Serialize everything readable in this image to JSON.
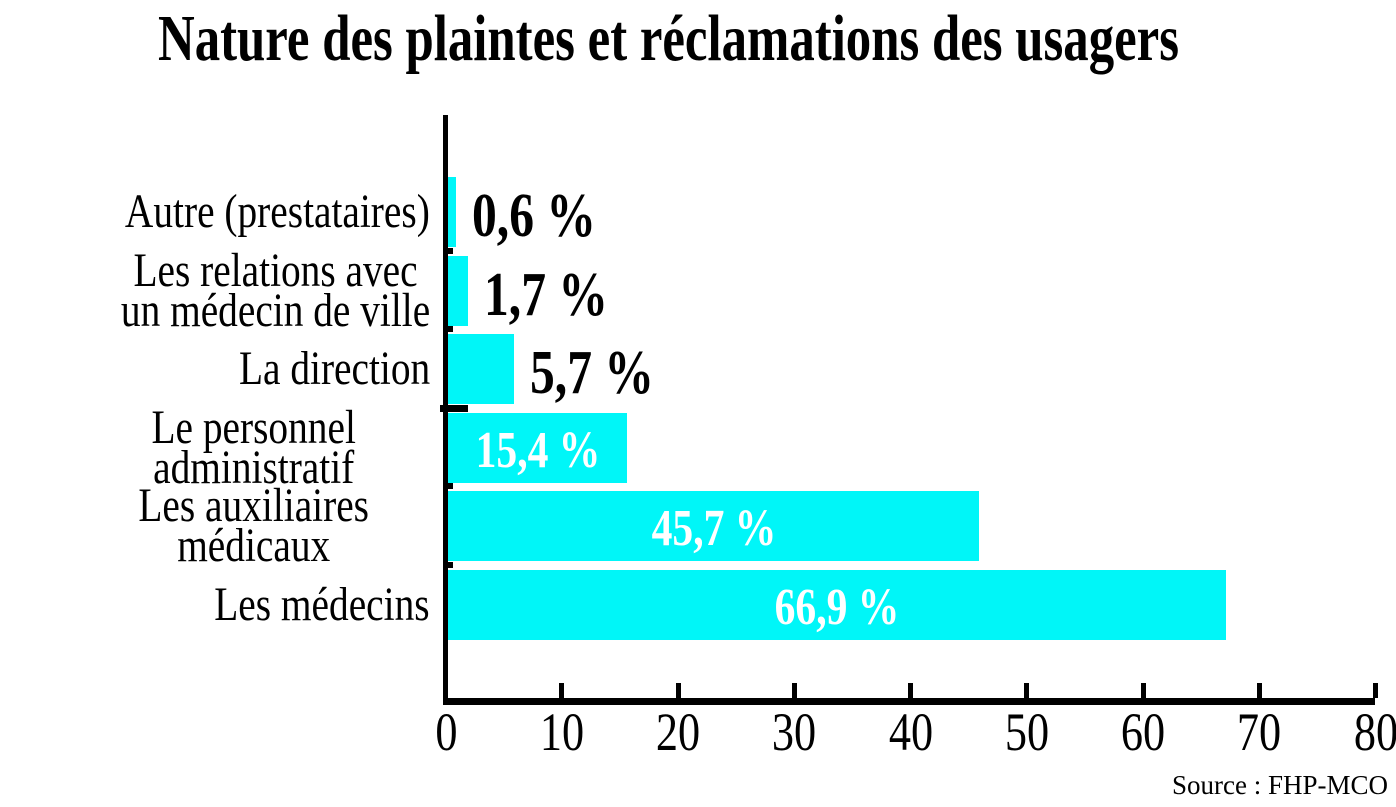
{
  "title": "Nature des plaintes et réclamations des usagers",
  "source": "Source : FHP-MCO",
  "chart_data": {
    "type": "bar",
    "orientation": "horizontal",
    "title": "Nature des plaintes et réclamations des usagers",
    "categories": [
      "Autre (prestataires)",
      "Les relations avec\nun médecin de ville",
      "La direction",
      "Le personnel administratif",
      "Les auxiliaires médicaux",
      "Les médecins"
    ],
    "values": [
      0.6,
      1.7,
      5.7,
      15.4,
      45.7,
      66.9
    ],
    "value_labels": [
      "0,6 %",
      "1,7 %",
      "5,7 %",
      "15,4 %",
      "45,7 %",
      "66,9 %"
    ],
    "label_placement": [
      "outside",
      "outside",
      "outside",
      "inside",
      "inside",
      "inside"
    ],
    "x_ticks": [
      "0",
      "10",
      "20",
      "30",
      "40",
      "50",
      "60",
      "70",
      "80"
    ],
    "xlim": [
      0,
      80
    ],
    "grid": "off",
    "legend": "none",
    "bar_color": "#00f6f8",
    "axis_color": "#000000",
    "outside_label_color": "#000000",
    "inside_label_color": "#ffffff",
    "source": "Source : FHP-MCO"
  }
}
